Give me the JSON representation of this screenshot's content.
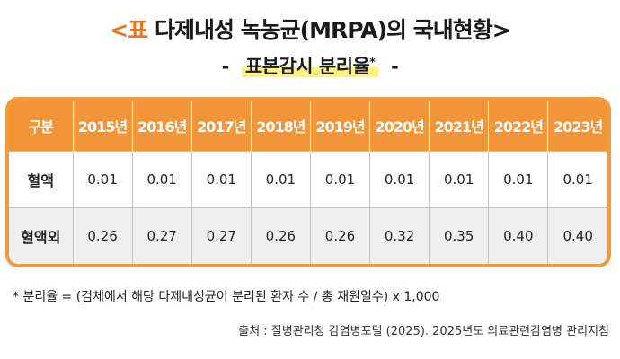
{
  "header": {
    "title_lead": "<표",
    "title_rest": "다제내성 녹농균(MRPA)의 국내현황>",
    "subtitle_dash_left": "-",
    "subtitle_text": "표본감시 분리율",
    "subtitle_mark": "*",
    "subtitle_dash_right": "-"
  },
  "table": {
    "columns": [
      "구분",
      "2015년",
      "2016년",
      "2017년",
      "2018년",
      "2019년",
      "2020년",
      "2021년",
      "2022년",
      "2023년"
    ],
    "rows": [
      {
        "label": "혈액",
        "values": [
          "0.01",
          "0.01",
          "0.01",
          "0.01",
          "0.01",
          "0.01",
          "0.01",
          "0.01",
          "0.01"
        ]
      },
      {
        "label": "혈액외",
        "values": [
          "0.26",
          "0.27",
          "0.27",
          "0.26",
          "0.26",
          "0.32",
          "0.35",
          "0.40",
          "0.40"
        ]
      }
    ]
  },
  "footnote": "* 분리율 = (검체에서 해당 다제내성균이 분리된 환자 수 / 총 재원일수) x 1,000",
  "source": "출처 : 질병관리청 감염병포털 (2025). 2025년도 의료관련감염병 관리지침",
  "colors": {
    "accent": "#e8741c",
    "header_bg": "#f29538",
    "highlight": "#fff27a",
    "row_alt": "#efefef"
  }
}
